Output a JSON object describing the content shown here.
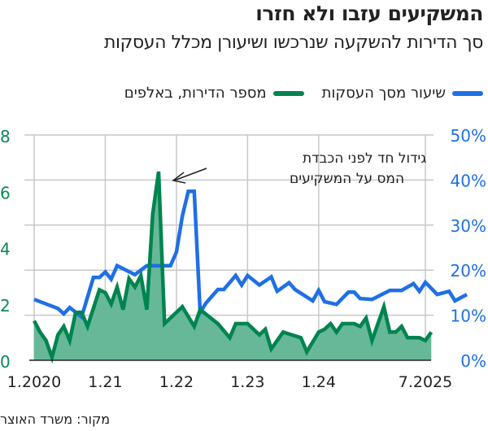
{
  "header": {
    "title": "המשקיעים עזבו ולא חזרו",
    "subtitle": "סך הדירות להשקעה שנרכשו ושיעורן מכלל העסקות"
  },
  "legend": {
    "blue_label": "שיעור מסך העסקות",
    "green_label": "מספר הדירות, באלפים"
  },
  "annotation": {
    "line1": "גידול חד לפני הכבדת",
    "line2": "המס על המשקיעים"
  },
  "source": "מקור: משרד האוצר",
  "colors": {
    "blue": "#1f6fe6",
    "green_line": "#00844f",
    "green_fill": "#66b899",
    "grid": "#c8c8c8",
    "left_axis_text": "#0a8a55",
    "right_axis_text": "#1f6fe6"
  },
  "chart_data": {
    "type": "line",
    "title": "המשקיעים עזבו ולא חזרו",
    "subtitle": "סך הדירות להשקעה שנרכשו ושיעורן מכלל העסקות",
    "x_tick_labels": [
      "1.2020",
      "1.21",
      "1.22",
      "1.23",
      "1.24",
      "7.2025"
    ],
    "x_tick_months": [
      0,
      12,
      24,
      36,
      48,
      66
    ],
    "left_axis": {
      "label": "מספר הדירות, באלפים",
      "ticks": [
        "0",
        "2",
        "4",
        "6",
        "8"
      ],
      "ylim": [
        0,
        8
      ]
    },
    "right_axis": {
      "label": "שיעור מסך העסקות",
      "ticks": [
        "0%",
        "10%",
        "20%",
        "30%",
        "40%",
        "50%"
      ],
      "ylim": [
        0,
        50
      ]
    },
    "grid": true,
    "legend_position": "top",
    "series": [
      {
        "name": "שיעור מסך העסקות",
        "axis": "right",
        "style": "line",
        "points": [
          [
            0,
            13.5
          ],
          [
            4,
            11.5
          ],
          [
            5,
            10.3
          ],
          [
            6,
            11.7
          ],
          [
            8,
            9.6
          ],
          [
            10,
            18.4
          ],
          [
            11,
            18.4
          ],
          [
            12,
            19.6
          ],
          [
            13,
            18.0
          ],
          [
            14,
            21.0
          ],
          [
            17,
            19.0
          ],
          [
            19,
            21.0
          ],
          [
            23,
            21.0
          ],
          [
            24,
            24.0
          ],
          [
            25,
            32.0
          ],
          [
            26,
            37.5
          ],
          [
            27,
            37.5
          ],
          [
            28,
            10.6
          ],
          [
            29,
            12.7
          ],
          [
            31,
            15.7
          ],
          [
            32,
            15.7
          ],
          [
            34,
            18.8
          ],
          [
            35,
            16.7
          ],
          [
            36,
            18.8
          ],
          [
            38,
            16.7
          ],
          [
            40,
            18.5
          ],
          [
            41,
            15.3
          ],
          [
            43,
            17.2
          ],
          [
            44,
            15.7
          ],
          [
            47,
            13.2
          ],
          [
            48,
            15.5
          ],
          [
            49,
            13.0
          ],
          [
            51,
            12.4
          ],
          [
            53,
            15.1
          ],
          [
            54,
            15.1
          ],
          [
            55,
            13.7
          ],
          [
            57,
            13.5
          ],
          [
            60,
            15.5
          ],
          [
            62,
            15.5
          ],
          [
            64,
            17.0
          ],
          [
            65,
            15.3
          ],
          [
            66,
            17.3
          ],
          [
            68,
            14.6
          ],
          [
            70,
            15.3
          ],
          [
            71,
            13.2
          ],
          [
            73,
            14.6
          ]
        ]
      },
      {
        "name": "מספר הדירות, באלפים",
        "axis": "left",
        "style": "area",
        "points": [
          [
            0,
            1.4
          ],
          [
            1,
            1.0
          ],
          [
            2,
            0.7
          ],
          [
            3,
            0.1
          ],
          [
            4,
            0.9
          ],
          [
            5,
            1.2
          ],
          [
            6,
            0.7
          ],
          [
            7,
            1.7
          ],
          [
            8,
            1.7
          ],
          [
            9,
            1.2
          ],
          [
            11,
            2.5
          ],
          [
            12,
            2.4
          ],
          [
            13,
            2.0
          ],
          [
            14,
            2.6
          ],
          [
            15,
            1.8
          ],
          [
            16,
            2.9
          ],
          [
            17,
            2.6
          ],
          [
            18,
            3.0
          ],
          [
            19,
            1.8
          ],
          [
            20,
            5.2
          ],
          [
            21,
            6.7
          ],
          [
            22,
            1.3
          ],
          [
            25,
            1.9
          ],
          [
            27,
            1.2
          ],
          [
            28,
            1.8
          ],
          [
            31,
            1.3
          ],
          [
            33,
            0.8
          ],
          [
            34,
            1.3
          ],
          [
            36,
            1.3
          ],
          [
            38,
            0.9
          ],
          [
            39,
            1.1
          ],
          [
            40,
            0.4
          ],
          [
            42,
            1.0
          ],
          [
            45,
            0.8
          ],
          [
            46,
            0.3
          ],
          [
            48,
            1.0
          ],
          [
            49,
            1.1
          ],
          [
            50,
            1.3
          ],
          [
            51,
            1.0
          ],
          [
            52,
            1.3
          ],
          [
            54,
            1.3
          ],
          [
            55,
            1.2
          ],
          [
            56,
            1.5
          ],
          [
            57,
            0.7
          ],
          [
            59,
            1.9
          ],
          [
            60,
            1.0
          ],
          [
            61,
            1.0
          ],
          [
            62,
            1.2
          ],
          [
            63,
            0.8
          ],
          [
            65,
            0.8
          ],
          [
            66,
            0.7
          ],
          [
            67,
            1.0
          ]
        ]
      }
    ]
  }
}
